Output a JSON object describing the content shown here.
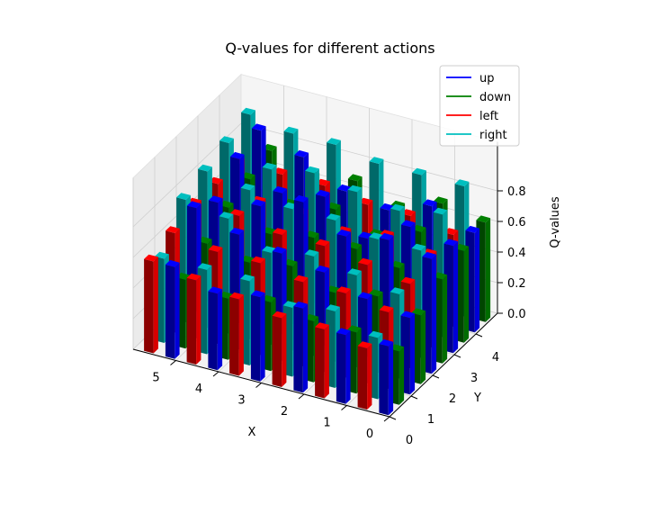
{
  "chart_data": {
    "type": "bar3d",
    "title": "Q-values for different actions",
    "xlabel": "X",
    "ylabel": "Y",
    "zlabel": "Q-values",
    "x_ticks": [
      "0",
      "1",
      "2",
      "3",
      "4",
      "5"
    ],
    "y_ticks": [
      "0",
      "1",
      "2",
      "3",
      "4"
    ],
    "z_ticks": [
      "0.0",
      "0.2",
      "0.4",
      "0.6",
      "0.8"
    ],
    "zlim": [
      0,
      1.0
    ],
    "grid": true,
    "legend_position": "top-right",
    "series": [
      {
        "name": "up",
        "color": "#0000ff",
        "values": [
          [
            0.45,
            0.5,
            0.75,
            0.7,
            0.65
          ],
          [
            0.45,
            0.55,
            0.8,
            0.75,
            0.75
          ],
          [
            0.55,
            0.65,
            0.75,
            0.6,
            0.65
          ],
          [
            0.55,
            0.7,
            0.9,
            0.8,
            0.7
          ],
          [
            0.5,
            0.75,
            0.8,
            0.75,
            0.85
          ],
          [
            0.6,
            0.85,
            0.75,
            0.9,
            0.95
          ]
        ]
      },
      {
        "name": "down",
        "color": "#008000",
        "values": [
          [
            0.35,
            0.45,
            0.55,
            0.6,
            0.65
          ],
          [
            0.4,
            0.5,
            0.55,
            0.65,
            0.7
          ],
          [
            0.4,
            0.45,
            0.6,
            0.55,
            0.6
          ],
          [
            0.45,
            0.55,
            0.6,
            0.65,
            0.7
          ],
          [
            0.4,
            0.5,
            0.55,
            0.6,
            0.65
          ],
          [
            0.45,
            0.55,
            0.65,
            0.7,
            0.75
          ]
        ]
      },
      {
        "name": "left",
        "color": "#ff0000",
        "values": [
          [
            0.4,
            0.5,
            0.55,
            0.6,
            0.6
          ],
          [
            0.45,
            0.55,
            0.6,
            0.65,
            0.65
          ],
          [
            0.45,
            0.55,
            0.65,
            0.6,
            0.65
          ],
          [
            0.5,
            0.6,
            0.65,
            0.65,
            0.7
          ],
          [
            0.55,
            0.6,
            0.7,
            0.65,
            0.7
          ],
          [
            0.6,
            0.65,
            0.7,
            0.7,
            0.7
          ]
        ]
      },
      {
        "name": "right",
        "color": "#00bfbf",
        "values": [
          [
            0.4,
            0.55,
            0.7,
            0.8,
            0.85
          ],
          [
            0.5,
            0.6,
            0.7,
            0.75,
            0.85
          ],
          [
            0.45,
            0.65,
            0.75,
            0.8,
            0.85
          ],
          [
            0.55,
            0.6,
            0.75,
            0.85,
            0.9
          ],
          [
            0.55,
            0.75,
            0.8,
            0.8,
            0.9
          ],
          [
            0.55,
            0.8,
            0.85,
            0.9,
            0.95
          ]
        ]
      }
    ]
  }
}
